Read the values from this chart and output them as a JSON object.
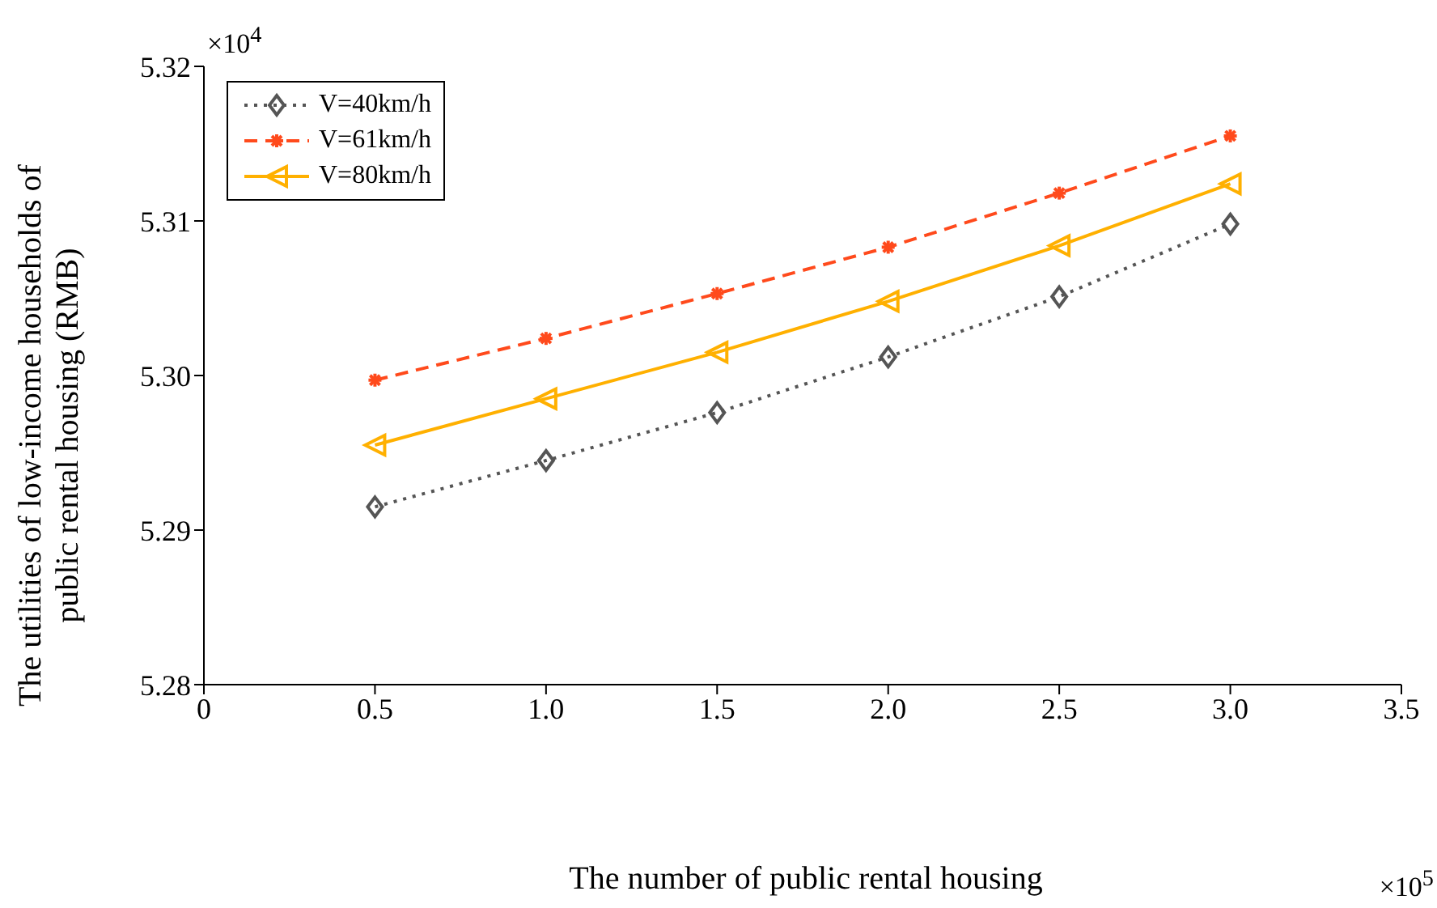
{
  "chart_data": {
    "type": "line",
    "xlabel": "The number of public rental housing",
    "ylabel": "The utilities of low-income households of public rental housing (RMB)",
    "annotations": [
      "×10$^{4}$",
      "×10$^{5}$"
    ],
    "x": [
      0.5,
      1,
      1.5,
      2,
      2.5,
      3
    ],
    "series": [
      {
        "name": "V=40km/h",
        "color": "#555555",
        "marker": "diamond",
        "line_style": "dotted",
        "values": [
          5.2915,
          5.2945,
          5.2976,
          5.3012,
          5.3051,
          5.3098
        ]
      },
      {
        "name": "V=61km/h",
        "color": "#ff4a1c",
        "marker": "cross",
        "line_style": "dashed",
        "values": [
          5.2997,
          5.3024,
          5.3053,
          5.3083,
          5.3118,
          5.3155
        ]
      },
      {
        "name": "V=80km/h",
        "color": "#ffb000",
        "marker": "triangle",
        "line_style": "solid",
        "values": [
          5.2955,
          5.2985,
          5.3015,
          5.3048,
          5.3084,
          5.3124
        ]
      }
    ],
    "xlim": [
      0,
      3.5
    ],
    "xticks": [
      0,
      {
        "value": 0.5,
        "label": "0.5"
      },
      {
        "value": 1,
        "label": "1.0"
      },
      {
        "value": 1.5,
        "label": "1.5"
      },
      {
        "value": 2,
        "label": "2.0"
      },
      {
        "value": 2.5,
        "label": "2.5"
      },
      {
        "value": 3,
        "label": "3.0"
      },
      {
        "value": 3.5,
        "label": "3.5"
      }
    ],
    "ylim": [
      5.28,
      5.32
    ],
    "yticks": [
      5.28,
      5.29,
      {
        "value": 5.3,
        "label": "5.30"
      },
      5.31,
      {
        "value": 5.32,
        "label": "5.32"
      }
    ],
    "grid": false,
    "legend": "top left"
  }
}
